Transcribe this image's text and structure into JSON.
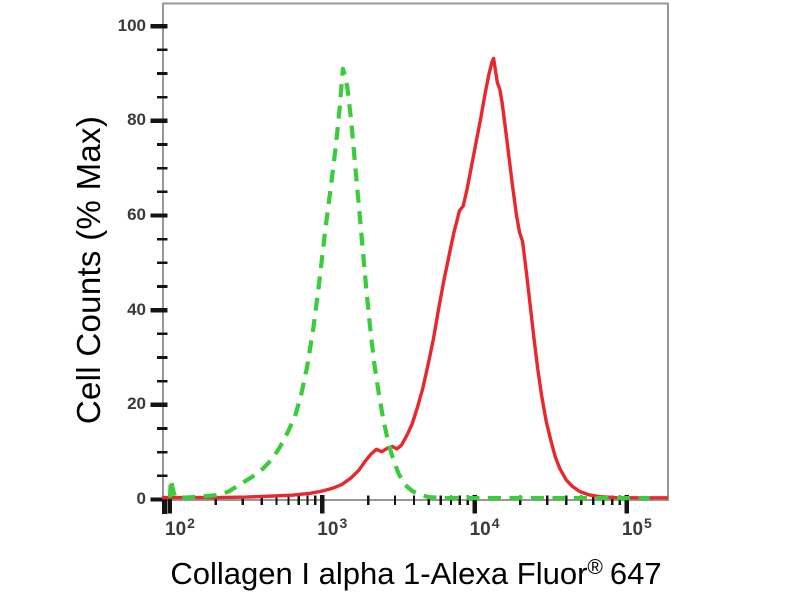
{
  "figure": {
    "background": "#ffffff"
  },
  "chart_data": {
    "type": "line",
    "subtype": "flow-cytometry-histogram",
    "title": "",
    "xlabel_main": "Collagen I alpha 1-Alexa Fluor",
    "xlabel_reg": "®",
    "xlabel_suffix": "647",
    "ylabel": "Cell Counts (% Max)",
    "x_scale": "log10",
    "xlim_log": [
      1.947,
      5.27
    ],
    "ylim": [
      0,
      104.5
    ],
    "grid": false,
    "legend": "none",
    "axis_color": "#989898",
    "tick_color": "#141414",
    "tick_label_color": "#3a3a3a",
    "axis_title_color": "#000000",
    "x_major_ticks": [
      {
        "base": "10",
        "exp": "2",
        "log": 2
      },
      {
        "base": "10",
        "exp": "3",
        "log": 3
      },
      {
        "base": "10",
        "exp": "4",
        "log": 4
      },
      {
        "base": "10",
        "exp": "5",
        "log": 5
      }
    ],
    "x_minor_decades": [
      2,
      3,
      4
    ],
    "x_minor_multiples": [
      2,
      3,
      4,
      5,
      6,
      7,
      8,
      9
    ],
    "y_ticks": [
      {
        "label": "0",
        "value": 0
      },
      {
        "label": "20",
        "value": 20
      },
      {
        "label": "40",
        "value": 40
      },
      {
        "label": "60",
        "value": 60
      },
      {
        "label": "80",
        "value": 80
      },
      {
        "label": "100",
        "value": 100
      }
    ],
    "y_minor_step": 5,
    "series": [
      {
        "name": "green-dashed-control",
        "color": "#3bcc3b",
        "style": "dashed",
        "dash": [
          13,
          8.5
        ],
        "width": 4.2,
        "peak": {
          "x_log": 3.135,
          "pct": 91
        },
        "points": [
          [
            2.0,
            0.4
          ],
          [
            2.005,
            4.2
          ],
          [
            2.02,
            2.0
          ],
          [
            2.035,
            0.5
          ],
          [
            2.1,
            0.4
          ],
          [
            2.2,
            0.6
          ],
          [
            2.3,
            0.9
          ],
          [
            2.38,
            1.6
          ],
          [
            2.46,
            3.2
          ],
          [
            2.54,
            4.8
          ],
          [
            2.61,
            6.5
          ],
          [
            2.67,
            8.5
          ],
          [
            2.72,
            11
          ],
          [
            2.77,
            14
          ],
          [
            2.82,
            17.5
          ],
          [
            2.86,
            22
          ],
          [
            2.9,
            28
          ],
          [
            2.94,
            36
          ],
          [
            2.98,
            46
          ],
          [
            3.02,
            57
          ],
          [
            3.06,
            67
          ],
          [
            3.09,
            75
          ],
          [
            3.115,
            83
          ],
          [
            3.135,
            91
          ],
          [
            3.15,
            89.5
          ],
          [
            3.165,
            87
          ],
          [
            3.19,
            80
          ],
          [
            3.215,
            71
          ],
          [
            3.24,
            62
          ],
          [
            3.265,
            53
          ],
          [
            3.29,
            44
          ],
          [
            3.315,
            36
          ],
          [
            3.34,
            29
          ],
          [
            3.37,
            22.5
          ],
          [
            3.4,
            17
          ],
          [
            3.43,
            12.5
          ],
          [
            3.46,
            9
          ],
          [
            3.5,
            5.5
          ],
          [
            3.54,
            3.2
          ],
          [
            3.59,
            1.8
          ],
          [
            3.64,
            1.0
          ],
          [
            3.7,
            0.5
          ],
          [
            3.8,
            0.3
          ],
          [
            3.95,
            0.3
          ],
          [
            4.1,
            0.3
          ],
          [
            4.3,
            0.3
          ],
          [
            4.5,
            0.3
          ],
          [
            4.7,
            0.3
          ],
          [
            4.9,
            0.3
          ],
          [
            5.08,
            0.3
          ],
          [
            5.15,
            0.3
          ]
        ]
      },
      {
        "name": "red-solid-stained",
        "color": "#e8282d",
        "style": "solid",
        "dash": null,
        "width": 3.4,
        "peak": {
          "x_log": 4.125,
          "pct": 93
        },
        "points": [
          [
            1.947,
            0.4
          ],
          [
            2.1,
            0.4
          ],
          [
            2.3,
            0.4
          ],
          [
            2.5,
            0.5
          ],
          [
            2.65,
            0.7
          ],
          [
            2.8,
            0.9
          ],
          [
            2.92,
            1.3
          ],
          [
            3.0,
            1.8
          ],
          [
            3.07,
            2.4
          ],
          [
            3.13,
            3.2
          ],
          [
            3.19,
            4.6
          ],
          [
            3.24,
            6.2
          ],
          [
            3.28,
            8.0
          ],
          [
            3.32,
            9.6
          ],
          [
            3.355,
            10.6
          ],
          [
            3.39,
            10.1
          ],
          [
            3.43,
            10.9
          ],
          [
            3.46,
            11.2
          ],
          [
            3.49,
            10.7
          ],
          [
            3.52,
            11.5
          ],
          [
            3.555,
            13.5
          ],
          [
            3.59,
            16
          ],
          [
            3.625,
            19.5
          ],
          [
            3.66,
            23.5
          ],
          [
            3.695,
            28.5
          ],
          [
            3.73,
            34
          ],
          [
            3.765,
            40.5
          ],
          [
            3.8,
            46.5
          ],
          [
            3.835,
            52
          ],
          [
            3.865,
            56.5
          ],
          [
            3.885,
            59
          ],
          [
            3.9,
            61
          ],
          [
            3.925,
            62
          ],
          [
            3.95,
            65.5
          ],
          [
            3.98,
            70.5
          ],
          [
            4.01,
            75.5
          ],
          [
            4.04,
            80.5
          ],
          [
            4.07,
            86
          ],
          [
            4.095,
            90
          ],
          [
            4.115,
            92.5
          ],
          [
            4.125,
            93.2
          ],
          [
            4.135,
            91
          ],
          [
            4.15,
            88
          ],
          [
            4.165,
            86.8
          ],
          [
            4.18,
            84
          ],
          [
            4.2,
            79
          ],
          [
            4.225,
            72.5
          ],
          [
            4.25,
            66
          ],
          [
            4.275,
            60
          ],
          [
            4.295,
            56.5
          ],
          [
            4.315,
            54.5
          ],
          [
            4.34,
            48
          ],
          [
            4.365,
            41
          ],
          [
            4.39,
            34
          ],
          [
            4.415,
            27.5
          ],
          [
            4.44,
            22
          ],
          [
            4.47,
            16.5
          ],
          [
            4.5,
            12.5
          ],
          [
            4.53,
            9
          ],
          [
            4.56,
            6.5
          ],
          [
            4.6,
            4.2
          ],
          [
            4.64,
            2.8
          ],
          [
            4.69,
            1.7
          ],
          [
            4.75,
            1.0
          ],
          [
            4.82,
            0.6
          ],
          [
            4.92,
            0.4
          ],
          [
            5.05,
            0.35
          ],
          [
            5.27,
            0.35
          ]
        ]
      }
    ]
  }
}
